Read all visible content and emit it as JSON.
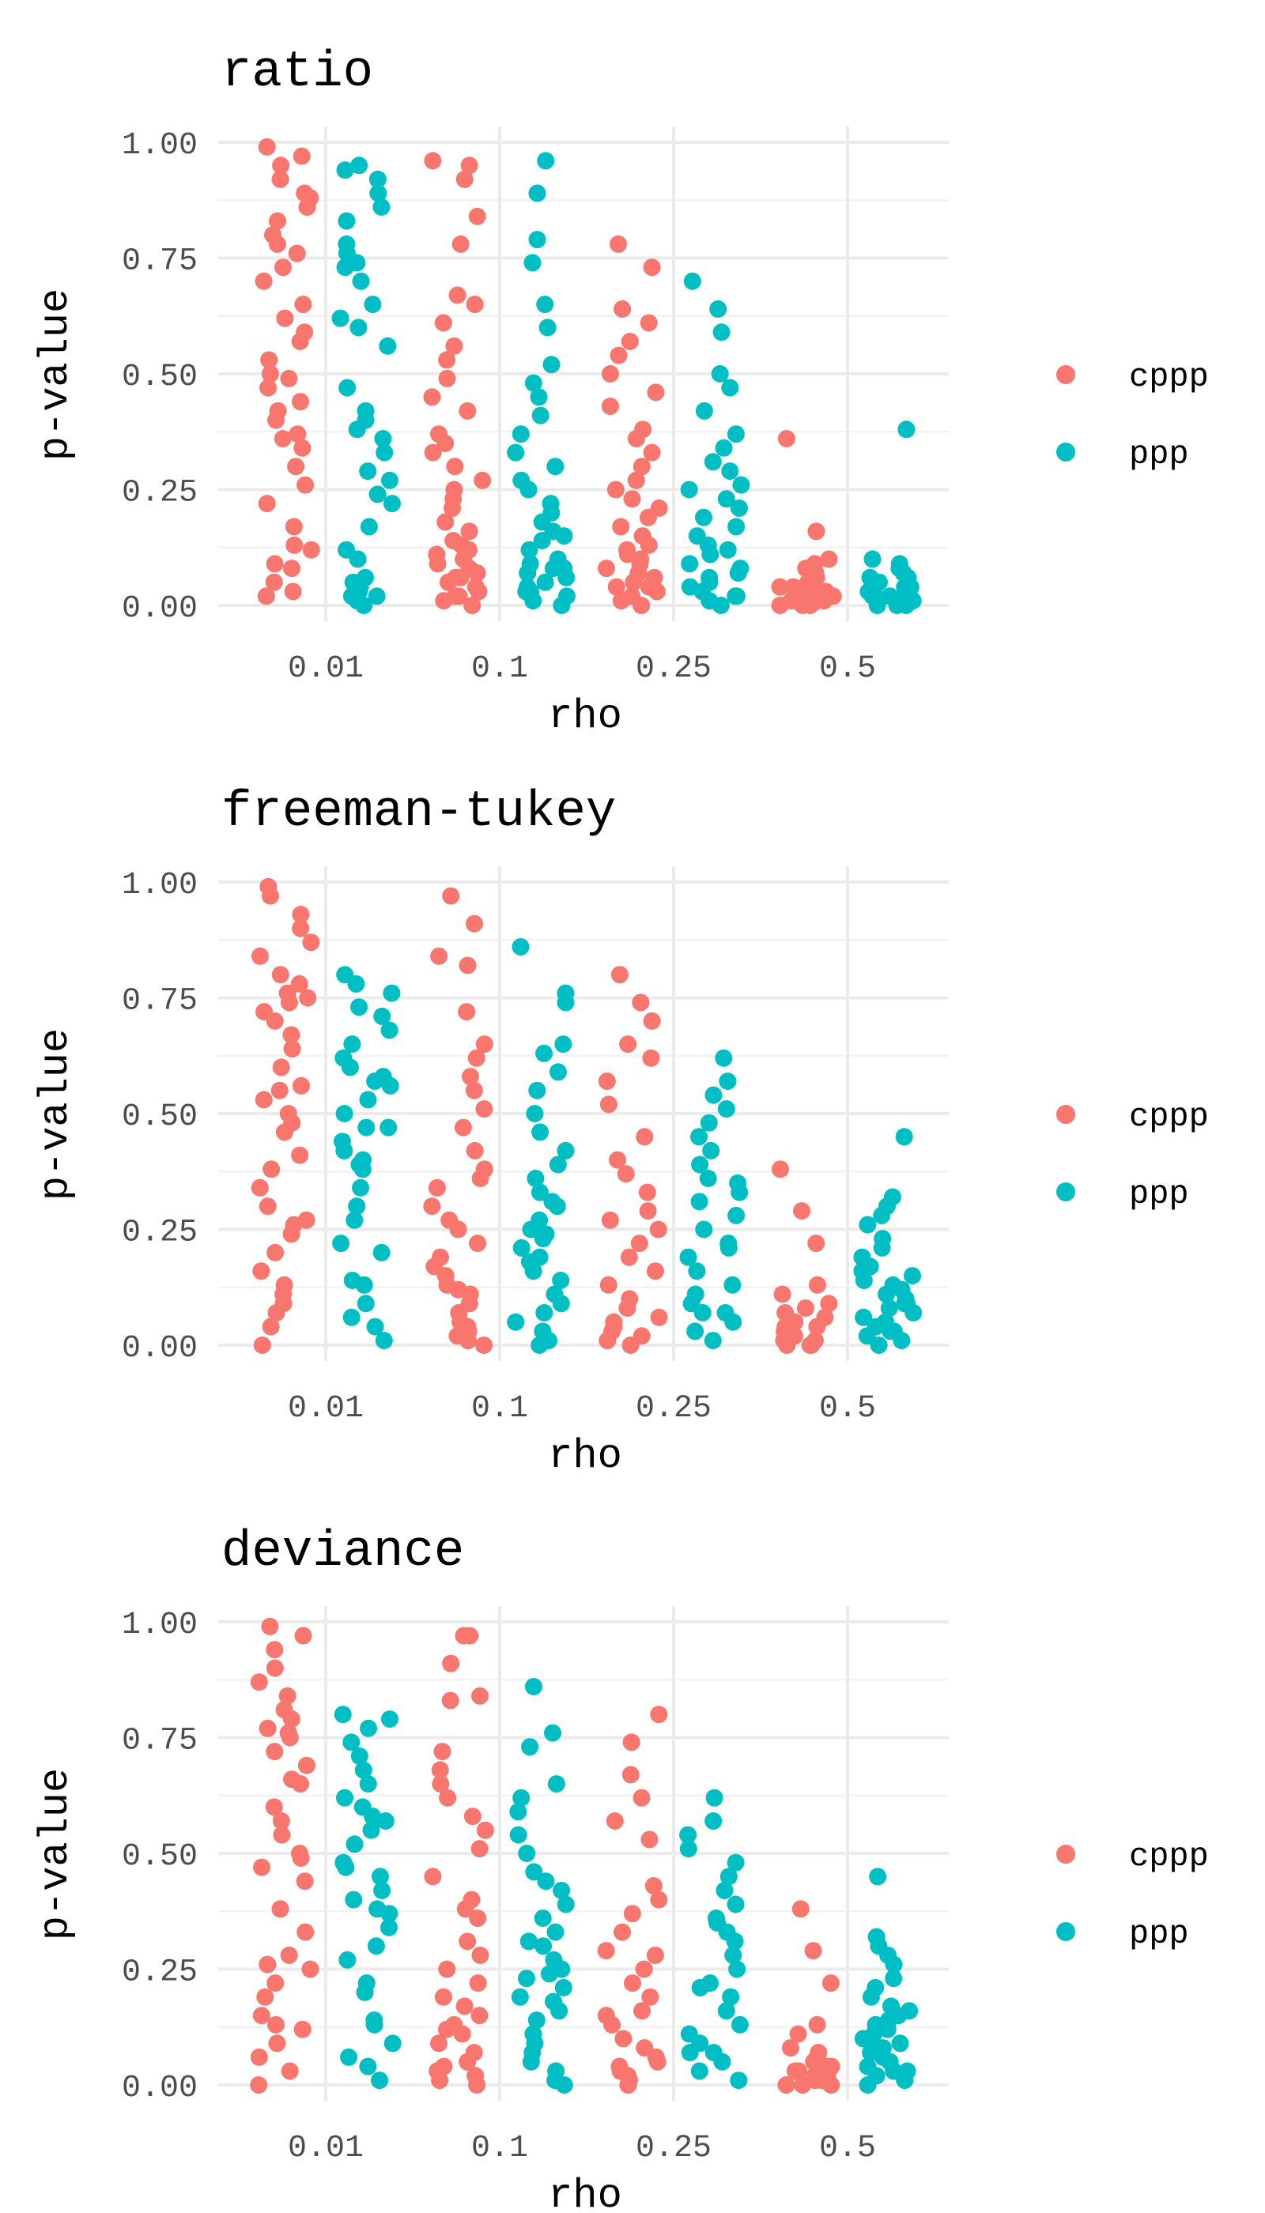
{
  "colors": {
    "cppp": "#F8766D",
    "ppp": "#00BFC4",
    "grid": "#EBEBEB",
    "text": "#4D4D4D"
  },
  "chart_data": [
    {
      "type": "scatter",
      "title": "ratio",
      "xlabel": "rho",
      "ylabel": "p-value",
      "categories": [
        "0.01",
        "0.1",
        "0.25",
        "0.5"
      ],
      "yticks": [
        "0.00",
        "0.25",
        "0.50",
        "0.75",
        "1.00"
      ],
      "ylim": [
        0,
        1
      ],
      "grid": true,
      "legend": "right",
      "series": [
        {
          "name": "cppp",
          "values": [
            [
              0.03,
              0.05,
              0.08,
              0.12,
              0.13,
              0.17,
              0.22,
              0.26,
              0.3,
              0.34,
              0.37,
              0.4,
              0.44,
              0.47,
              0.49,
              0.5,
              0.53,
              0.57,
              0.59,
              0.65,
              0.7,
              0.73,
              0.76,
              0.78,
              0.8,
              0.83,
              0.86,
              0.89,
              0.92,
              0.95,
              0.97,
              0.99,
              0.02,
              0.09,
              0.42,
              0.62,
              0.88,
              0.36
            ],
            [
              0.0,
              0.01,
              0.02,
              0.03,
              0.04,
              0.05,
              0.06,
              0.07,
              0.08,
              0.09,
              0.1,
              0.11,
              0.12,
              0.14,
              0.16,
              0.18,
              0.21,
              0.23,
              0.25,
              0.27,
              0.3,
              0.33,
              0.35,
              0.37,
              0.42,
              0.45,
              0.49,
              0.53,
              0.56,
              0.61,
              0.65,
              0.67,
              0.78,
              0.84,
              0.92,
              0.95,
              0.96,
              0.13,
              0.06,
              0.02
            ],
            [
              0.0,
              0.01,
              0.02,
              0.03,
              0.04,
              0.05,
              0.06,
              0.07,
              0.08,
              0.09,
              0.1,
              0.12,
              0.13,
              0.15,
              0.17,
              0.19,
              0.21,
              0.23,
              0.25,
              0.27,
              0.3,
              0.33,
              0.36,
              0.38,
              0.43,
              0.46,
              0.5,
              0.54,
              0.57,
              0.61,
              0.64,
              0.73,
              0.78,
              0.04,
              0.11
            ],
            [
              0.0,
              0.0,
              0.01,
              0.01,
              0.01,
              0.02,
              0.02,
              0.02,
              0.03,
              0.03,
              0.04,
              0.04,
              0.05,
              0.05,
              0.06,
              0.07,
              0.08,
              0.09,
              0.1,
              0.16,
              0.36,
              0.0,
              0.01,
              0.03
            ]
          ]
        },
        {
          "name": "ppp",
          "values": [
            [
              0.0,
              0.01,
              0.02,
              0.03,
              0.04,
              0.05,
              0.1,
              0.12,
              0.17,
              0.22,
              0.24,
              0.29,
              0.33,
              0.36,
              0.38,
              0.4,
              0.42,
              0.47,
              0.56,
              0.6,
              0.62,
              0.65,
              0.7,
              0.73,
              0.76,
              0.78,
              0.83,
              0.86,
              0.89,
              0.92,
              0.95,
              0.02,
              0.06,
              0.27,
              0.74,
              0.94
            ],
            [
              0.0,
              0.01,
              0.02,
              0.03,
              0.04,
              0.05,
              0.06,
              0.07,
              0.08,
              0.09,
              0.1,
              0.12,
              0.14,
              0.16,
              0.18,
              0.2,
              0.22,
              0.25,
              0.27,
              0.3,
              0.33,
              0.37,
              0.41,
              0.45,
              0.48,
              0.52,
              0.6,
              0.65,
              0.74,
              0.79,
              0.89,
              0.96,
              0.03,
              0.15,
              0.08
            ],
            [
              0.0,
              0.01,
              0.02,
              0.03,
              0.04,
              0.05,
              0.06,
              0.07,
              0.08,
              0.09,
              0.11,
              0.13,
              0.15,
              0.17,
              0.19,
              0.21,
              0.23,
              0.26,
              0.29,
              0.31,
              0.34,
              0.37,
              0.42,
              0.47,
              0.5,
              0.59,
              0.64,
              0.7,
              0.02,
              0.12,
              0.25
            ],
            [
              0.0,
              0.0,
              0.01,
              0.01,
              0.01,
              0.02,
              0.02,
              0.02,
              0.03,
              0.03,
              0.04,
              0.04,
              0.05,
              0.05,
              0.06,
              0.07,
              0.08,
              0.09,
              0.1,
              0.38,
              0.0,
              0.01,
              0.03,
              0.06
            ]
          ]
        }
      ]
    },
    {
      "type": "scatter",
      "title": "freeman-tukey",
      "xlabel": "rho",
      "ylabel": "p-value",
      "categories": [
        "0.01",
        "0.1",
        "0.25",
        "0.5"
      ],
      "yticks": [
        "0.00",
        "0.25",
        "0.50",
        "0.75",
        "1.00"
      ],
      "ylim": [
        0,
        1
      ],
      "grid": true,
      "legend": "right",
      "series": [
        {
          "name": "cppp",
          "values": [
            [
              0.0,
              0.04,
              0.07,
              0.09,
              0.13,
              0.16,
              0.2,
              0.24,
              0.27,
              0.3,
              0.34,
              0.38,
              0.41,
              0.46,
              0.48,
              0.5,
              0.53,
              0.56,
              0.6,
              0.64,
              0.67,
              0.7,
              0.72,
              0.74,
              0.76,
              0.78,
              0.8,
              0.84,
              0.87,
              0.9,
              0.93,
              0.97,
              0.99,
              0.26,
              0.75,
              0.55,
              0.11
            ],
            [
              0.0,
              0.01,
              0.02,
              0.03,
              0.05,
              0.07,
              0.09,
              0.11,
              0.13,
              0.15,
              0.17,
              0.19,
              0.22,
              0.25,
              0.27,
              0.3,
              0.34,
              0.38,
              0.42,
              0.47,
              0.51,
              0.55,
              0.58,
              0.62,
              0.65,
              0.72,
              0.82,
              0.84,
              0.91,
              0.97,
              0.04,
              0.12,
              0.36
            ],
            [
              0.0,
              0.01,
              0.02,
              0.03,
              0.04,
              0.06,
              0.08,
              0.1,
              0.13,
              0.16,
              0.19,
              0.22,
              0.25,
              0.29,
              0.33,
              0.37,
              0.4,
              0.45,
              0.52,
              0.57,
              0.62,
              0.65,
              0.7,
              0.74,
              0.8,
              0.05,
              0.27
            ],
            [
              0.0,
              0.0,
              0.01,
              0.01,
              0.02,
              0.02,
              0.03,
              0.03,
              0.04,
              0.05,
              0.06,
              0.07,
              0.08,
              0.09,
              0.11,
              0.13,
              0.22,
              0.29,
              0.38,
              0.0,
              0.02,
              0.04
            ]
          ]
        },
        {
          "name": "ppp",
          "values": [
            [
              0.01,
              0.04,
              0.06,
              0.09,
              0.14,
              0.2,
              0.22,
              0.27,
              0.3,
              0.34,
              0.38,
              0.4,
              0.42,
              0.44,
              0.47,
              0.5,
              0.53,
              0.56,
              0.58,
              0.6,
              0.62,
              0.65,
              0.68,
              0.71,
              0.73,
              0.76,
              0.78,
              0.8,
              0.39,
              0.57,
              0.47,
              0.13
            ],
            [
              0.0,
              0.01,
              0.03,
              0.05,
              0.07,
              0.09,
              0.11,
              0.14,
              0.16,
              0.19,
              0.21,
              0.23,
              0.25,
              0.27,
              0.3,
              0.33,
              0.36,
              0.39,
              0.42,
              0.46,
              0.5,
              0.55,
              0.59,
              0.63,
              0.65,
              0.74,
              0.76,
              0.86,
              0.24,
              0.31,
              0.18
            ],
            [
              0.01,
              0.03,
              0.05,
              0.07,
              0.09,
              0.11,
              0.13,
              0.16,
              0.19,
              0.22,
              0.25,
              0.28,
              0.31,
              0.33,
              0.36,
              0.39,
              0.42,
              0.45,
              0.48,
              0.51,
              0.54,
              0.57,
              0.62,
              0.07,
              0.35,
              0.21
            ],
            [
              0.0,
              0.01,
              0.02,
              0.03,
              0.04,
              0.05,
              0.06,
              0.07,
              0.08,
              0.09,
              0.1,
              0.11,
              0.12,
              0.13,
              0.14,
              0.15,
              0.17,
              0.19,
              0.21,
              0.23,
              0.26,
              0.28,
              0.3,
              0.32,
              0.45,
              0.03,
              0.16,
              0.09
            ]
          ]
        }
      ]
    },
    {
      "type": "scatter",
      "title": "deviance",
      "xlabel": "rho",
      "ylabel": "p-value",
      "categories": [
        "0.01",
        "0.1",
        "0.25",
        "0.5"
      ],
      "yticks": [
        "0.00",
        "0.25",
        "0.50",
        "0.75",
        "1.00"
      ],
      "ylim": [
        0,
        1
      ],
      "grid": true,
      "legend": "right",
      "series": [
        {
          "name": "cppp",
          "values": [
            [
              0.0,
              0.03,
              0.06,
              0.09,
              0.13,
              0.15,
              0.19,
              0.22,
              0.25,
              0.28,
              0.33,
              0.38,
              0.44,
              0.47,
              0.5,
              0.54,
              0.57,
              0.6,
              0.65,
              0.69,
              0.72,
              0.75,
              0.77,
              0.79,
              0.81,
              0.84,
              0.87,
              0.9,
              0.94,
              0.97,
              0.99,
              0.26,
              0.76,
              0.49,
              0.12,
              0.66
            ],
            [
              0.0,
              0.01,
              0.02,
              0.03,
              0.05,
              0.07,
              0.09,
              0.11,
              0.13,
              0.15,
              0.17,
              0.19,
              0.22,
              0.25,
              0.28,
              0.31,
              0.36,
              0.4,
              0.45,
              0.51,
              0.55,
              0.58,
              0.62,
              0.65,
              0.68,
              0.72,
              0.83,
              0.84,
              0.91,
              0.97,
              0.04,
              0.12,
              0.38,
              0.97
            ],
            [
              0.0,
              0.01,
              0.02,
              0.03,
              0.04,
              0.06,
              0.08,
              0.1,
              0.13,
              0.16,
              0.19,
              0.22,
              0.25,
              0.29,
              0.33,
              0.37,
              0.4,
              0.43,
              0.53,
              0.57,
              0.62,
              0.67,
              0.74,
              0.8,
              0.05,
              0.28,
              0.15
            ],
            [
              0.0,
              0.0,
              0.01,
              0.01,
              0.02,
              0.02,
              0.03,
              0.03,
              0.04,
              0.05,
              0.06,
              0.07,
              0.08,
              0.11,
              0.13,
              0.22,
              0.29,
              0.38,
              0.0,
              0.02,
              0.04
            ]
          ]
        },
        {
          "name": "ppp",
          "values": [
            [
              0.01,
              0.04,
              0.06,
              0.09,
              0.14,
              0.2,
              0.22,
              0.27,
              0.3,
              0.34,
              0.37,
              0.4,
              0.42,
              0.45,
              0.48,
              0.52,
              0.55,
              0.58,
              0.6,
              0.62,
              0.65,
              0.68,
              0.71,
              0.74,
              0.77,
              0.79,
              0.8,
              0.38,
              0.57,
              0.47,
              0.13
            ],
            [
              0.0,
              0.01,
              0.03,
              0.05,
              0.07,
              0.09,
              0.11,
              0.14,
              0.16,
              0.19,
              0.21,
              0.23,
              0.25,
              0.27,
              0.3,
              0.33,
              0.36,
              0.39,
              0.42,
              0.46,
              0.5,
              0.54,
              0.59,
              0.62,
              0.65,
              0.73,
              0.76,
              0.86,
              0.24,
              0.31,
              0.18,
              0.44
            ],
            [
              0.01,
              0.03,
              0.05,
              0.07,
              0.09,
              0.11,
              0.13,
              0.16,
              0.19,
              0.22,
              0.25,
              0.28,
              0.31,
              0.33,
              0.36,
              0.39,
              0.42,
              0.45,
              0.48,
              0.51,
              0.54,
              0.57,
              0.62,
              0.07,
              0.35,
              0.21
            ],
            [
              0.0,
              0.01,
              0.02,
              0.03,
              0.04,
              0.05,
              0.06,
              0.07,
              0.08,
              0.09,
              0.1,
              0.11,
              0.12,
              0.13,
              0.14,
              0.15,
              0.17,
              0.19,
              0.21,
              0.23,
              0.26,
              0.28,
              0.3,
              0.32,
              0.45,
              0.03,
              0.16,
              0.09
            ]
          ]
        }
      ]
    }
  ]
}
